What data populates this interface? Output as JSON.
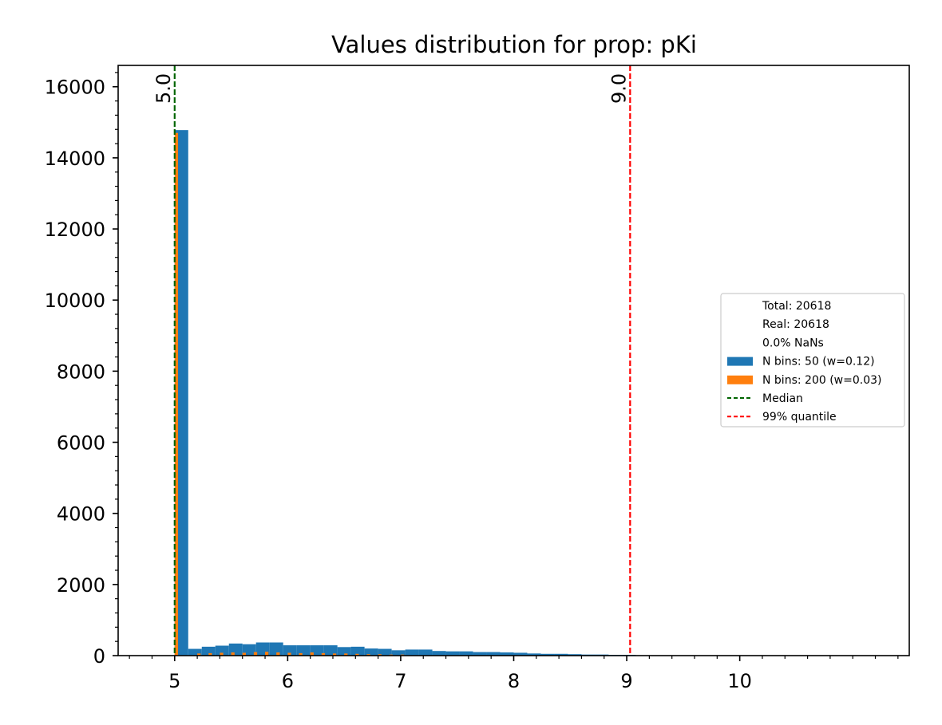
{
  "chart_data": {
    "type": "bar",
    "title": "Values distribution for prop: pKi",
    "xlabel": "",
    "ylabel": "",
    "xlim": [
      4.5,
      11.5
    ],
    "ylim": [
      0,
      16600
    ],
    "xticks": [
      5,
      6,
      7,
      8,
      9,
      10
    ],
    "xtick_labels": [
      "5",
      "6",
      "7",
      "8",
      "9",
      "10"
    ],
    "yticks": [
      0,
      2000,
      4000,
      6000,
      8000,
      10000,
      12000,
      14000,
      16000
    ],
    "ytick_labels": [
      "0",
      "2000",
      "4000",
      "6000",
      "8000",
      "10000",
      "12000",
      "14000",
      "16000"
    ],
    "grid": false,
    "legend_position": "center-right",
    "legend_stats": [
      "Total: 20618",
      "Real: 20618",
      "0.0% NaNs"
    ],
    "colors": {
      "bins50": "#1f77b4",
      "bins200": "#ff7f0e",
      "median": "#006400",
      "quantile": "#ff0000"
    },
    "series": [
      {
        "name": "N bins: 50 (w=0.12)",
        "bin_width": 0.12,
        "bin_starts": [
          5.0,
          5.12,
          5.24,
          5.36,
          5.48,
          5.6,
          5.72,
          5.84,
          5.96,
          6.08,
          6.2,
          6.32,
          6.44,
          6.56,
          6.68,
          6.8,
          6.92,
          7.04,
          7.16,
          7.28,
          7.4,
          7.52,
          7.64,
          7.76,
          7.88,
          8.0,
          8.12,
          8.24,
          8.36,
          8.48,
          8.6,
          8.72,
          8.84,
          8.96
        ],
        "values": [
          14780,
          190,
          250,
          280,
          340,
          320,
          370,
          370,
          290,
          290,
          290,
          290,
          240,
          250,
          200,
          190,
          150,
          170,
          170,
          130,
          120,
          120,
          100,
          100,
          90,
          80,
          60,
          50,
          50,
          40,
          30,
          30,
          20,
          20
        ]
      },
      {
        "name": "N bins: 200 (w=0.03)",
        "bin_width": 0.03,
        "bin_starts": [
          5.0,
          5.2,
          5.3,
          5.4,
          5.5,
          5.6,
          5.7,
          5.8,
          5.9,
          6.0,
          6.1,
          6.2,
          6.3,
          6.4,
          6.5,
          6.6,
          6.7,
          6.8,
          6.9,
          7.0
        ],
        "values": [
          14700,
          60,
          70,
          80,
          90,
          80,
          100,
          110,
          90,
          80,
          70,
          90,
          70,
          60,
          60,
          50,
          40,
          40,
          30,
          30
        ]
      }
    ],
    "vlines": [
      {
        "name": "Median",
        "x": 5.0,
        "label": "5.0",
        "style": "dashed"
      },
      {
        "name": "99% quantile",
        "x": 9.03,
        "label": "9.0",
        "style": "dashed"
      }
    ]
  }
}
